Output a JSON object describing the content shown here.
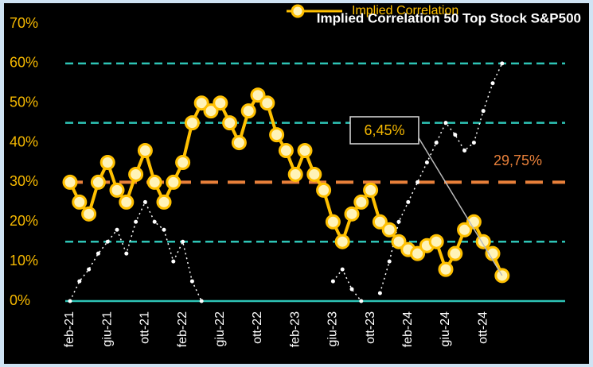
{
  "chart_data": {
    "type": "line",
    "title": "Implied Correlation 50 Top Stock S&P500",
    "categories": [
      "feb-21",
      null,
      null,
      null,
      "giu-21",
      null,
      null,
      null,
      "ott-21",
      null,
      null,
      null,
      "feb-22",
      null,
      null,
      null,
      "giu-22",
      null,
      null,
      null,
      "ott-22",
      null,
      null,
      null,
      "feb-23",
      null,
      null,
      null,
      "giu-23",
      null,
      null,
      null,
      "ott-23",
      null,
      null,
      null,
      "feb-24",
      null,
      null,
      null,
      "giu-24",
      null,
      null,
      null,
      "ott-24",
      null,
      null
    ],
    "series": [
      {
        "name": "Implied Correlation",
        "color": "#ffc000",
        "values": [
          30,
          25,
          22,
          30,
          35,
          28,
          25,
          32,
          38,
          30,
          25,
          30,
          35,
          45,
          50,
          48,
          50,
          45,
          40,
          48,
          52,
          50,
          42,
          38,
          32,
          38,
          32,
          28,
          20,
          15,
          22,
          25,
          28,
          20,
          18,
          15,
          13,
          12,
          14,
          15,
          8,
          12,
          18,
          20,
          15,
          12,
          6.45
        ]
      },
      {
        "color": "#ffffff",
        "values": [
          0,
          5,
          8,
          12,
          15,
          18,
          12,
          20,
          25,
          20,
          18,
          10,
          15,
          5,
          0,
          null,
          null,
          null,
          null,
          null,
          null,
          null,
          null,
          null,
          null,
          null,
          null,
          null,
          5,
          8,
          3,
          0,
          null,
          2,
          10,
          20,
          25,
          30,
          35,
          40,
          45,
          42,
          38,
          40,
          48,
          55,
          60
        ]
      }
    ],
    "ylim": [
      0,
      70
    ],
    "yticks": [
      {
        "value": 0,
        "label": "0%"
      },
      {
        "value": 10,
        "label": "10%"
      },
      {
        "value": 20,
        "label": "20%"
      },
      {
        "value": 30,
        "label": "30%"
      },
      {
        "value": 40,
        "label": "40%"
      },
      {
        "value": 50,
        "label": "50%"
      },
      {
        "value": 60,
        "label": "60%"
      },
      {
        "value": 70,
        "label": "70%"
      }
    ],
    "reference_lines": [
      {
        "value": 0,
        "color": "#2ec4b6"
      },
      {
        "value": 15,
        "color": "#2ec4b6"
      },
      {
        "value": 30,
        "color": "#e8803a"
      },
      {
        "value": 45,
        "color": "#2ec4b6"
      },
      {
        "value": 60,
        "color": "#2ec4b6"
      }
    ],
    "annotations": [
      "6,45%",
      "29,75%"
    ]
  }
}
